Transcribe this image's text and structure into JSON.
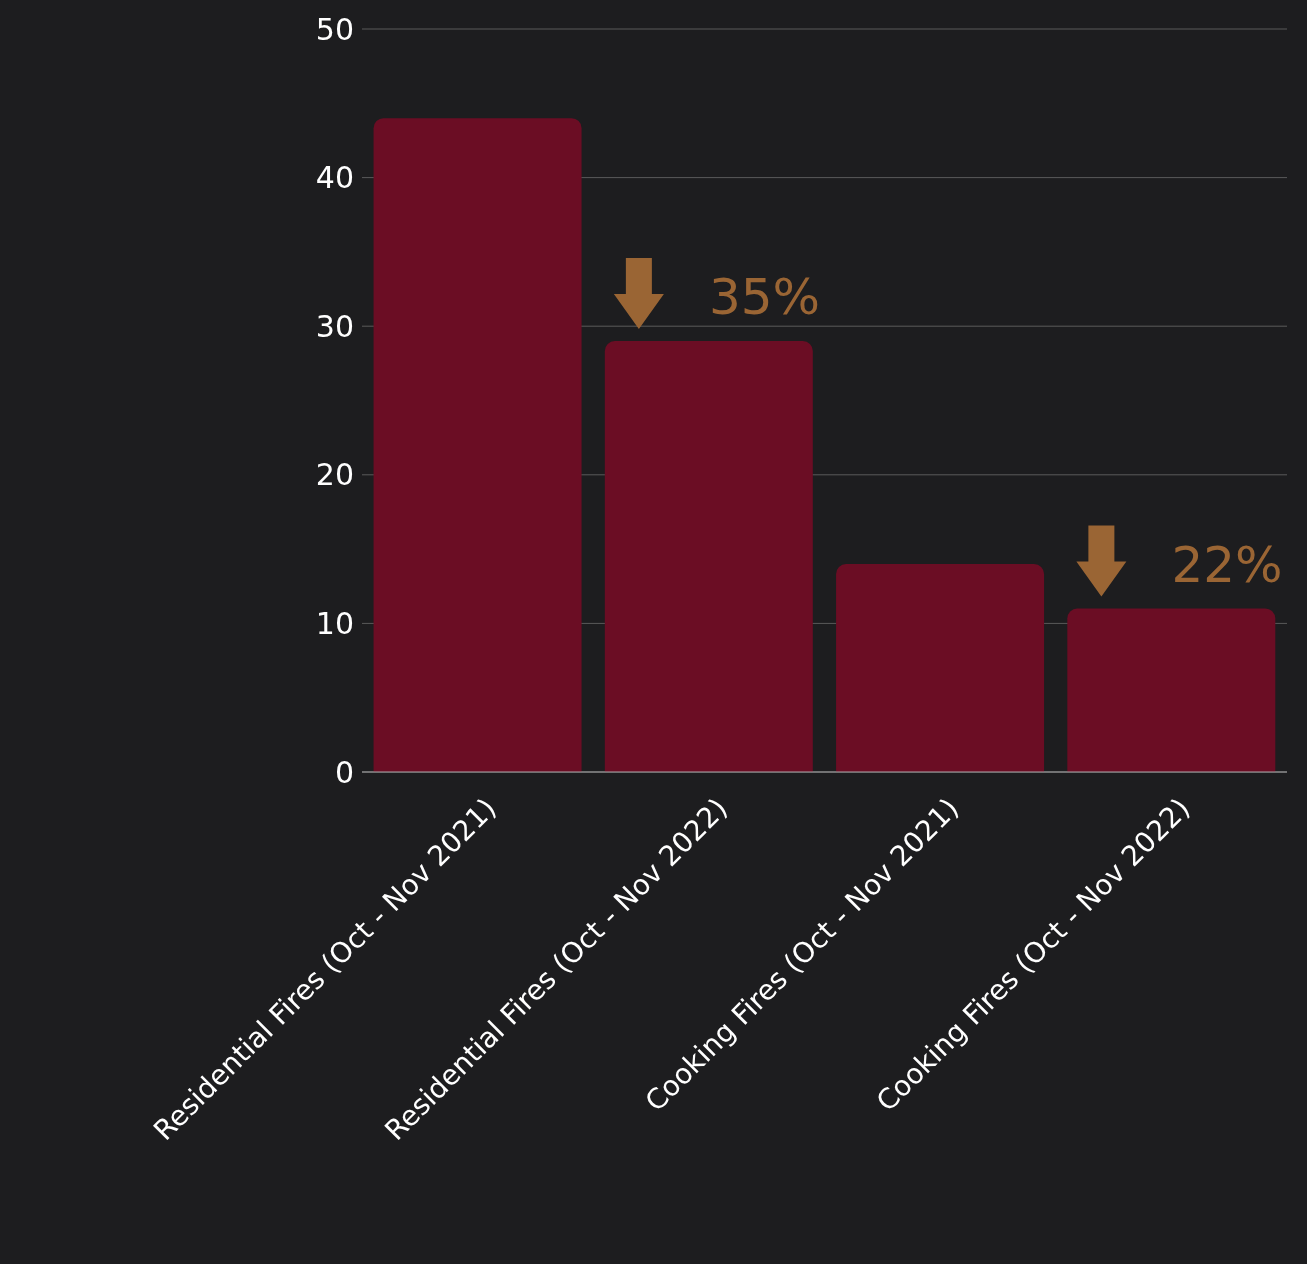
{
  "chart_data": {
    "type": "bar",
    "categories": [
      "Residential Fires (Oct - Nov 2021)",
      "Residential Fires (Oct - Nov 2022)",
      "Cooking Fires (Oct - Nov 2021)",
      "Cooking Fires (Oct - Nov 2022)"
    ],
    "values": [
      44,
      29,
      14,
      11
    ],
    "color": "#6b0d24",
    "ylim": [
      0,
      50
    ],
    "yticks": [
      0,
      10,
      20,
      30,
      40,
      50
    ],
    "grid": "y",
    "annotations": [
      "35%",
      "22%"
    ]
  }
}
